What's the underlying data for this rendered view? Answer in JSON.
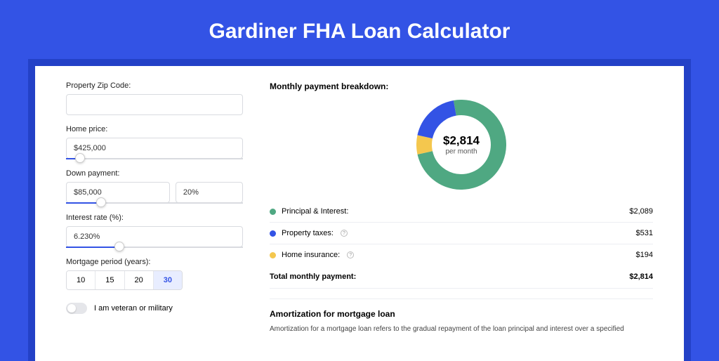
{
  "title": "Gardiner FHA Loan Calculator",
  "colors": {
    "page_bg": "#3353e5",
    "shadow_bg": "#2341c7",
    "card_bg": "#ffffff",
    "accent": "#3353e5",
    "pi_color": "#4fa882",
    "tax_color": "#3353e5",
    "ins_color": "#f4c74e"
  },
  "form": {
    "zip": {
      "label": "Property Zip Code:",
      "value": ""
    },
    "home_price": {
      "label": "Home price:",
      "value": "$425,000",
      "slider_pct": 8
    },
    "down_payment": {
      "label": "Down payment:",
      "value": "$85,000",
      "pct_value": "20%",
      "slider_pct": 20
    },
    "interest_rate": {
      "label": "Interest rate (%):",
      "value": "6.230%",
      "slider_pct": 30
    },
    "period": {
      "label": "Mortgage period (years):",
      "options": [
        "10",
        "15",
        "20",
        "30"
      ],
      "active": "30"
    },
    "veteran": {
      "label": "I am veteran or military",
      "checked": false
    }
  },
  "breakdown": {
    "title": "Monthly payment breakdown:",
    "center_amount": "$2,814",
    "center_sub": "per month",
    "donut": {
      "size": 128,
      "thickness": 22,
      "segments": [
        {
          "color": "#4fa882",
          "fraction": 0.742
        },
        {
          "color": "#f4c74e",
          "fraction": 0.069
        },
        {
          "color": "#3353e5",
          "fraction": 0.189
        }
      ]
    },
    "items": [
      {
        "label": "Principal & Interest:",
        "value": "$2,089",
        "swatch": "#4fa882",
        "info": false
      },
      {
        "label": "Property taxes:",
        "value": "$531",
        "swatch": "#3353e5",
        "info": true
      },
      {
        "label": "Home insurance:",
        "value": "$194",
        "swatch": "#f4c74e",
        "info": true
      }
    ],
    "total": {
      "label": "Total monthly payment:",
      "value": "$2,814"
    }
  },
  "amortization": {
    "title": "Amortization for mortgage loan",
    "text": "Amortization for a mortgage loan refers to the gradual repayment of the loan principal and interest over a specified"
  }
}
